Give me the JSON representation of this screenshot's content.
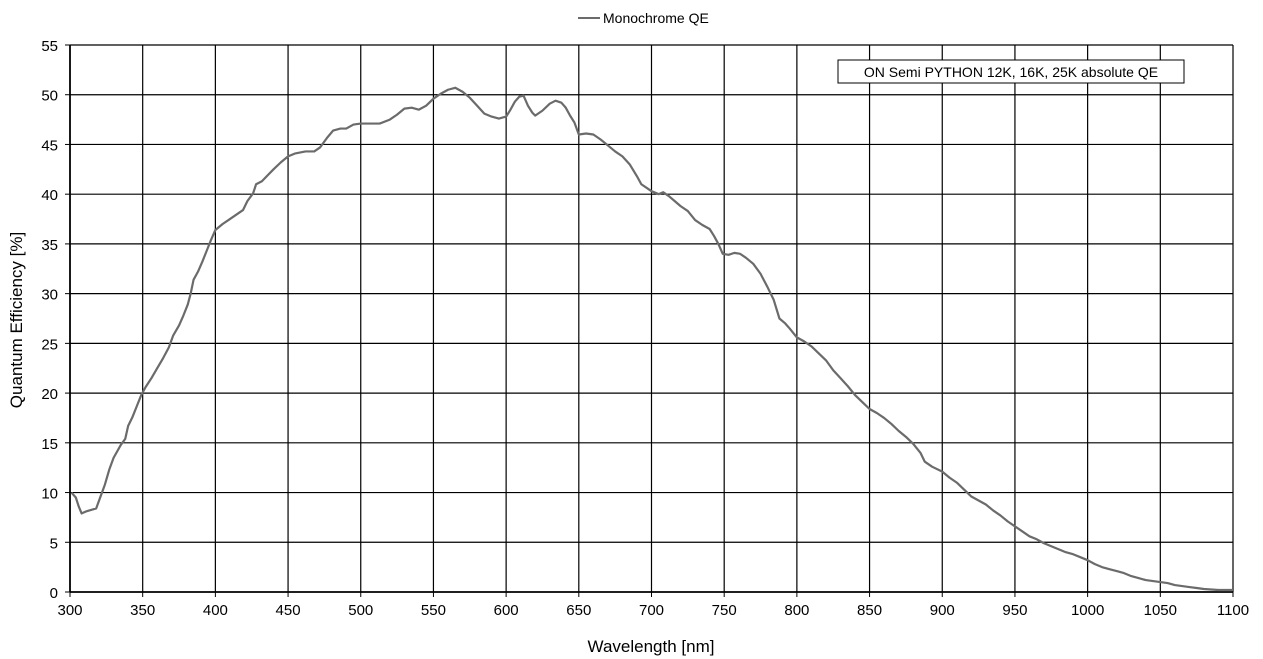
{
  "chart_data": {
    "type": "line",
    "title": "",
    "xlabel": "Wavelength [nm]",
    "ylabel": "Quantum Efficiency [%]",
    "xlim": [
      300,
      1100
    ],
    "ylim": [
      0,
      55
    ],
    "x_ticks": [
      "300",
      "350",
      "400",
      "450",
      "500",
      "550",
      "600",
      "650",
      "700",
      "750",
      "800",
      "850",
      "900",
      "950",
      "1000",
      "1050",
      "1100"
    ],
    "y_ticks": [
      "0",
      "5",
      "10",
      "15",
      "20",
      "25",
      "30",
      "35",
      "40",
      "45",
      "50",
      "55"
    ],
    "grid": true,
    "legend": {
      "position": "top-center",
      "entries": [
        "Monochrome QE"
      ]
    },
    "annotation": "ON Semi PYTHON 12K, 16K, 25K absolute QE",
    "series": [
      {
        "name": "Monochrome QE",
        "color": "#6b6b6b",
        "points": [
          [
            301,
            10.0
          ],
          [
            304,
            9.5
          ],
          [
            306,
            8.6
          ],
          [
            308,
            7.9
          ],
          [
            311,
            8.1
          ],
          [
            318,
            8.4
          ],
          [
            320,
            9.2
          ],
          [
            324,
            10.8
          ],
          [
            327,
            12.3
          ],
          [
            330,
            13.5
          ],
          [
            335,
            14.8
          ],
          [
            338,
            15.4
          ],
          [
            340,
            16.7
          ],
          [
            343,
            17.6
          ],
          [
            346,
            18.7
          ],
          [
            349,
            19.8
          ],
          [
            352,
            20.6
          ],
          [
            356,
            21.5
          ],
          [
            360,
            22.5
          ],
          [
            364,
            23.5
          ],
          [
            368,
            24.6
          ],
          [
            371,
            25.8
          ],
          [
            375,
            26.8
          ],
          [
            378,
            27.8
          ],
          [
            381,
            28.9
          ],
          [
            383,
            30.0
          ],
          [
            385,
            31.4
          ],
          [
            388,
            32.2
          ],
          [
            391,
            33.2
          ],
          [
            394,
            34.3
          ],
          [
            397,
            35.4
          ],
          [
            400,
            36.4
          ],
          [
            405,
            37.0
          ],
          [
            410,
            37.5
          ],
          [
            415,
            38.0
          ],
          [
            419,
            38.4
          ],
          [
            422,
            39.3
          ],
          [
            426,
            40.1
          ],
          [
            428,
            41.0
          ],
          [
            432,
            41.3
          ],
          [
            436,
            41.9
          ],
          [
            440,
            42.5
          ],
          [
            445,
            43.2
          ],
          [
            450,
            43.8
          ],
          [
            455,
            44.1
          ],
          [
            462,
            44.3
          ],
          [
            468,
            44.3
          ],
          [
            472,
            44.7
          ],
          [
            477,
            45.7
          ],
          [
            481,
            46.4
          ],
          [
            486,
            46.6
          ],
          [
            490,
            46.6
          ],
          [
            495,
            47.0
          ],
          [
            500,
            47.1
          ],
          [
            505,
            47.1
          ],
          [
            513,
            47.1
          ],
          [
            520,
            47.5
          ],
          [
            525,
            48.0
          ],
          [
            530,
            48.6
          ],
          [
            535,
            48.7
          ],
          [
            540,
            48.5
          ],
          [
            545,
            48.9
          ],
          [
            550,
            49.6
          ],
          [
            555,
            50.1
          ],
          [
            560,
            50.5
          ],
          [
            565,
            50.7
          ],
          [
            570,
            50.3
          ],
          [
            575,
            49.7
          ],
          [
            580,
            48.9
          ],
          [
            585,
            48.1
          ],
          [
            590,
            47.8
          ],
          [
            595,
            47.6
          ],
          [
            600,
            47.8
          ],
          [
            603,
            48.5
          ],
          [
            606,
            49.3
          ],
          [
            609,
            49.8
          ],
          [
            612,
            49.9
          ],
          [
            615,
            48.9
          ],
          [
            618,
            48.2
          ],
          [
            620,
            47.9
          ],
          [
            625,
            48.4
          ],
          [
            630,
            49.1
          ],
          [
            634,
            49.4
          ],
          [
            638,
            49.2
          ],
          [
            641,
            48.7
          ],
          [
            644,
            47.9
          ],
          [
            647,
            47.2
          ],
          [
            650,
            46.0
          ],
          [
            655,
            46.1
          ],
          [
            660,
            46.0
          ],
          [
            665,
            45.5
          ],
          [
            670,
            44.9
          ],
          [
            675,
            44.3
          ],
          [
            680,
            43.8
          ],
          [
            685,
            43.0
          ],
          [
            690,
            41.8
          ],
          [
            693,
            41.0
          ],
          [
            697,
            40.6
          ],
          [
            700,
            40.3
          ],
          [
            705,
            40.0
          ],
          [
            708,
            40.2
          ],
          [
            712,
            39.8
          ],
          [
            716,
            39.3
          ],
          [
            720,
            38.8
          ],
          [
            725,
            38.3
          ],
          [
            730,
            37.4
          ],
          [
            735,
            36.9
          ],
          [
            740,
            36.5
          ],
          [
            743,
            35.8
          ],
          [
            746,
            35.0
          ],
          [
            749,
            34.0
          ],
          [
            753,
            33.9
          ],
          [
            757,
            34.1
          ],
          [
            761,
            34.0
          ],
          [
            765,
            33.6
          ],
          [
            770,
            33.0
          ],
          [
            775,
            32.0
          ],
          [
            780,
            30.6
          ],
          [
            784,
            29.4
          ],
          [
            788,
            27.5
          ],
          [
            792,
            27.0
          ],
          [
            795,
            26.5
          ],
          [
            800,
            25.6
          ],
          [
            805,
            25.2
          ],
          [
            810,
            24.7
          ],
          [
            815,
            24.0
          ],
          [
            820,
            23.3
          ],
          [
            825,
            22.3
          ],
          [
            830,
            21.5
          ],
          [
            835,
            20.7
          ],
          [
            840,
            19.8
          ],
          [
            845,
            19.1
          ],
          [
            850,
            18.4
          ],
          [
            855,
            18.0
          ],
          [
            860,
            17.5
          ],
          [
            865,
            16.9
          ],
          [
            870,
            16.2
          ],
          [
            875,
            15.6
          ],
          [
            880,
            14.9
          ],
          [
            885,
            14.0
          ],
          [
            888,
            13.1
          ],
          [
            893,
            12.6
          ],
          [
            900,
            12.1
          ],
          [
            905,
            11.5
          ],
          [
            910,
            11.0
          ],
          [
            915,
            10.3
          ],
          [
            920,
            9.6
          ],
          [
            925,
            9.2
          ],
          [
            930,
            8.8
          ],
          [
            935,
            8.2
          ],
          [
            940,
            7.7
          ],
          [
            945,
            7.1
          ],
          [
            950,
            6.6
          ],
          [
            955,
            6.1
          ],
          [
            960,
            5.6
          ],
          [
            965,
            5.3
          ],
          [
            970,
            4.9
          ],
          [
            975,
            4.6
          ],
          [
            980,
            4.3
          ],
          [
            985,
            4.0
          ],
          [
            990,
            3.8
          ],
          [
            995,
            3.5
          ],
          [
            1000,
            3.2
          ],
          [
            1005,
            2.8
          ],
          [
            1010,
            2.5
          ],
          [
            1015,
            2.3
          ],
          [
            1020,
            2.1
          ],
          [
            1025,
            1.9
          ],
          [
            1030,
            1.6
          ],
          [
            1035,
            1.4
          ],
          [
            1040,
            1.2
          ],
          [
            1045,
            1.1
          ],
          [
            1050,
            1.0
          ],
          [
            1055,
            0.9
          ],
          [
            1060,
            0.7
          ],
          [
            1065,
            0.6
          ],
          [
            1070,
            0.5
          ],
          [
            1075,
            0.4
          ],
          [
            1080,
            0.3
          ],
          [
            1085,
            0.25
          ],
          [
            1090,
            0.2
          ],
          [
            1095,
            0.2
          ],
          [
            1100,
            0.2
          ]
        ]
      }
    ]
  }
}
